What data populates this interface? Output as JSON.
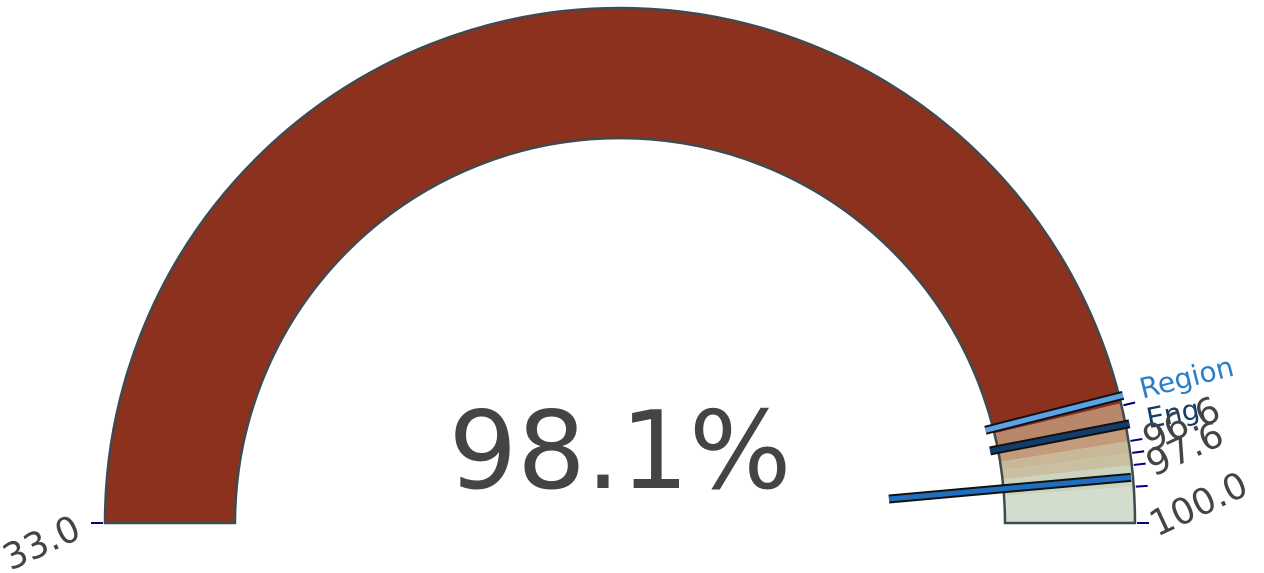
{
  "chart_data": {
    "type": "gauge",
    "value": 98.1,
    "value_label": "98.1%",
    "range": [
      33.0,
      100.0
    ],
    "tick_values": [
      33.0,
      96.6,
      97.6,
      100.0
    ],
    "tick_labels": [
      "33.0",
      "96.6",
      "97.6",
      "100.0"
    ],
    "bands": [
      {
        "from": 33.0,
        "to": 95.0,
        "color": "#8b311e"
      },
      {
        "from": 95.0,
        "to": 95.7,
        "color": "#b8876a"
      },
      {
        "from": 95.7,
        "to": 96.6,
        "color": "#c39a7c"
      },
      {
        "from": 96.6,
        "to": 97.1,
        "color": "#c8b898"
      },
      {
        "from": 97.1,
        "to": 97.6,
        "color": "#c9c0a2"
      },
      {
        "from": 97.6,
        "to": 98.5,
        "color": "#ccd4bf"
      },
      {
        "from": 98.5,
        "to": 100.0,
        "color": "#d2ddce"
      }
    ],
    "markers": [
      {
        "label": "Region",
        "value": 94.7,
        "color": "#5ba3e8",
        "text_color": "#2a7fc7"
      },
      {
        "label": "Eng",
        "value": 95.9,
        "color": "#123c6a",
        "text_color": "#123c6a"
      }
    ],
    "needle": {
      "value": 98.1,
      "color": "#1f6fbf"
    }
  }
}
